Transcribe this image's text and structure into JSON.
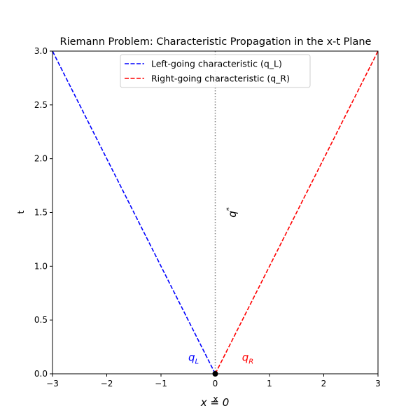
{
  "chart_data": {
    "type": "line",
    "title": "Riemann Problem: Characteristic Propagation in the x-t Plane",
    "xlabel": "x",
    "ylabel": "t",
    "xlim": [
      -3,
      3
    ],
    "ylim": [
      0,
      3
    ],
    "xticks": [
      -3,
      -2,
      -1,
      0,
      1,
      2,
      3
    ],
    "yticks": [
      0.0,
      0.5,
      1.0,
      1.5,
      2.0,
      2.5,
      3.0
    ],
    "xtick_labels": [
      "−3",
      "−2",
      "−1",
      "0",
      "1",
      "2",
      "3"
    ],
    "ytick_labels": [
      "0.0",
      "0.5",
      "1.0",
      "1.5",
      "2.0",
      "2.5",
      "3.0"
    ],
    "grid": false,
    "legend_position": "top-center",
    "series": [
      {
        "name": "Left-going characteristic (q_L)",
        "x": [
          0,
          -3
        ],
        "y": [
          0,
          3
        ],
        "color": "#0000ff",
        "style": "dashed"
      },
      {
        "name": "Right-going characteristic (q_R)",
        "x": [
          0,
          3
        ],
        "y": [
          0,
          3
        ],
        "color": "#ff0000",
        "style": "dashed"
      }
    ],
    "vertical_line": {
      "x": 0,
      "color": "#808080",
      "style": "dotted"
    },
    "origin_point": {
      "x": 0,
      "y": 0
    },
    "annotations": [
      {
        "text": "q",
        "subscript": "L",
        "x": -0.4,
        "y": 0.12,
        "color": "#0000ff"
      },
      {
        "text": "q",
        "subscript": "R",
        "x": 0.6,
        "y": 0.12,
        "color": "#ff0000"
      },
      {
        "text": "q",
        "superscript": "*",
        "x": 0.38,
        "y": 1.5,
        "color": "#000000",
        "rotation": -90
      }
    ],
    "bottom_label": "x = 0"
  }
}
